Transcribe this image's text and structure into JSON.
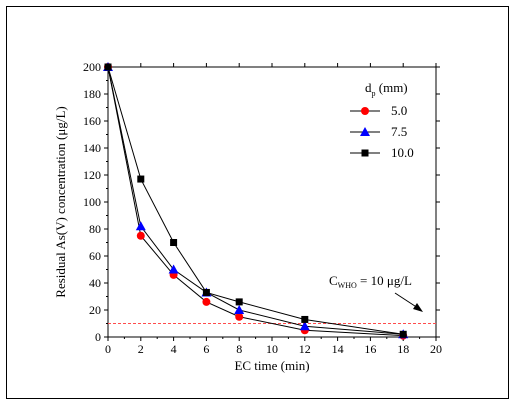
{
  "chart_data": {
    "type": "line",
    "title": "",
    "xlabel": "EC time (min)",
    "ylabel": "Residual As(V) concentration (μg/L)",
    "xlim": [
      0,
      20
    ],
    "ylim": [
      0,
      200
    ],
    "xticks": [
      0,
      2,
      4,
      6,
      8,
      10,
      12,
      14,
      16,
      18,
      20
    ],
    "yticks": [
      0,
      20,
      40,
      60,
      80,
      100,
      120,
      140,
      160,
      180,
      200
    ],
    "grid": false,
    "legend_position": "top-right",
    "legend_title_main": "d",
    "legend_title_sub": "p",
    "legend_title_unit": " (mm)",
    "series": [
      {
        "name": "5.0",
        "marker": "circle",
        "color": "#ff0000",
        "x": [
          0,
          2,
          4,
          6,
          8,
          12,
          18
        ],
        "y": [
          200,
          75,
          46,
          26,
          15,
          5,
          1
        ]
      },
      {
        "name": "7.5",
        "marker": "triangle",
        "color": "#0000ff",
        "x": [
          0,
          2,
          4,
          6,
          8,
          12,
          18
        ],
        "y": [
          200,
          82,
          50,
          33,
          20,
          8,
          2
        ]
      },
      {
        "name": "10.0",
        "marker": "square",
        "color": "#000000",
        "x": [
          0,
          2,
          4,
          6,
          8,
          12,
          18
        ],
        "y": [
          200,
          117,
          70,
          33,
          26,
          13,
          2
        ]
      }
    ],
    "reference_line": {
      "y": 10,
      "color": "#ff4d4d"
    },
    "annotation": {
      "main": "C",
      "sub": "WHO",
      "rest": " = 10 μg/L"
    }
  }
}
